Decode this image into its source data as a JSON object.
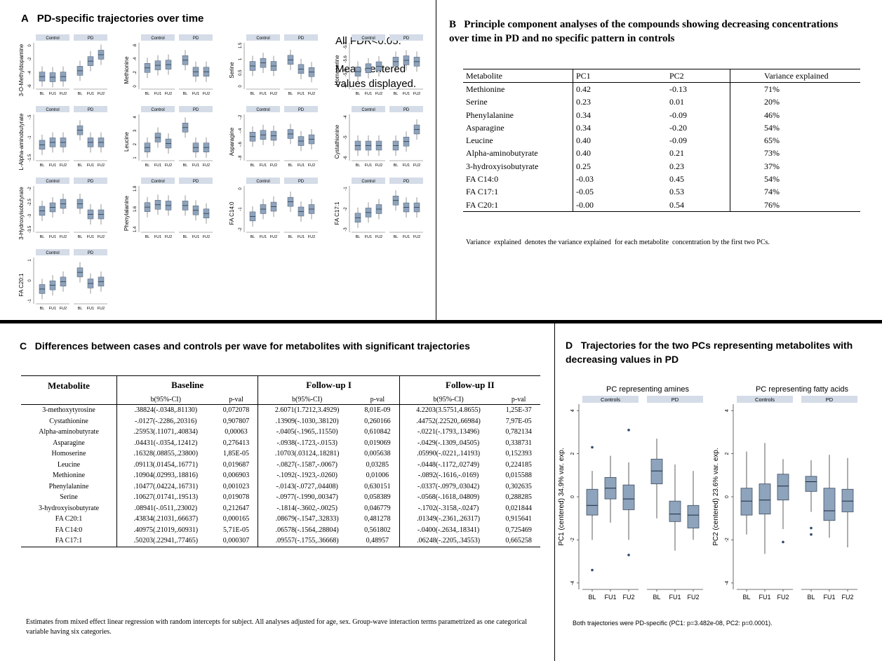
{
  "panelA": {
    "title": "A   PD-specific trajectories over time",
    "note1": "All FDR<0.05.",
    "note2": "Mean centered values displayed.",
    "strip_control": "Control",
    "strip_pd": "PD",
    "xticks": [
      "BL",
      "FU1",
      "FU2"
    ],
    "plots": [
      {
        "ylabel": "3-O-Methyldopamine",
        "yticks": [
          "0",
          "-2",
          "-4",
          "-6"
        ],
        "control": [
          -5.4,
          -5.5,
          -5.4
        ],
        "pd": [
          -4.5,
          -3.0,
          -2.0
        ]
      },
      {
        "ylabel": "Methionine",
        "yticks": [
          ".6",
          ".4",
          ".2",
          "0"
        ],
        "control": [
          0.28,
          0.32,
          0.33
        ],
        "pd": [
          0.4,
          0.22,
          0.22
        ]
      },
      {
        "ylabel": "Serine",
        "yticks": [
          "1.5",
          "1",
          "0.5",
          "0"
        ],
        "control": [
          1.0,
          1.05,
          1.0
        ],
        "pd": [
          1.1,
          0.95,
          0.9
        ]
      },
      {
        "ylabel": "Homoserine",
        "yticks": [
          "-5.4",
          "-5.6",
          "-5.8",
          "-6"
        ],
        "control": [
          -5.8,
          -5.75,
          -5.72
        ],
        "pd": [
          -5.65,
          -5.63,
          -5.65
        ]
      },
      {
        "ylabel": "L-Alpha-aminobutyrate",
        "yticks": [
          "-.5",
          "-1",
          "-1.5"
        ],
        "control": [
          -1.1,
          -1.05,
          -1.05
        ],
        "pd": [
          -0.8,
          -1.05,
          -1.05
        ]
      },
      {
        "ylabel": "Leucine",
        "yticks": [
          "4",
          "3",
          "2",
          "1"
        ],
        "control": [
          2.0,
          2.5,
          2.2
        ],
        "pd": [
          3.0,
          2.0,
          2.0
        ]
      },
      {
        "ylabel": "Asparagine",
        "yticks": [
          "-.2",
          "-.4",
          "-.6",
          "-.8"
        ],
        "control": [
          -0.45,
          -0.43,
          -0.44
        ],
        "pd": [
          -0.42,
          -0.5,
          -0.48
        ]
      },
      {
        "ylabel": "Cystathionine",
        "yticks": [
          "-4",
          "-5",
          "-6"
        ],
        "control": [
          -5.0,
          -5.0,
          -5.0
        ],
        "pd": [
          -5.0,
          -4.9,
          -4.6
        ]
      },
      {
        "ylabel": "3-Hydroxyisobutyrate",
        "yticks": [
          "-2",
          "-2.5",
          "-3",
          "-3.5"
        ],
        "control": [
          -2.7,
          -2.65,
          -2.6
        ],
        "pd": [
          -2.6,
          -2.75,
          -2.75
        ]
      },
      {
        "ylabel": "Phenylalanine",
        "yticks": [
          "1.8",
          "1.6",
          "1.4"
        ],
        "control": [
          1.6,
          1.63,
          1.62
        ],
        "pd": [
          1.62,
          1.56,
          1.52
        ]
      },
      {
        "ylabel": "FA C14:0",
        "yticks": [
          "0",
          "-1",
          "-2"
        ],
        "control": [
          -1.1,
          -0.95,
          -0.9
        ],
        "pd": [
          -0.8,
          -1.0,
          -0.95
        ]
      },
      {
        "ylabel": "FA C17:1",
        "yticks": [
          "-1",
          "-2",
          "-3"
        ],
        "control": [
          -1.8,
          -1.65,
          -1.55
        ],
        "pd": [
          -1.3,
          -1.5,
          -1.5
        ]
      },
      {
        "ylabel": "FA C20:1",
        "yticks": [
          "1",
          "0",
          "-1"
        ],
        "control": [
          -0.2,
          -0.1,
          0.0
        ],
        "pd": [
          0.25,
          -0.05,
          0.0
        ]
      }
    ]
  },
  "panelB": {
    "title": "B   Principle component analyses of the compounds showing decreasing concentrations over time in PD and no specific pattern in controls",
    "headers": [
      "Metabolite",
      "PC1",
      "PC2",
      "Variance explained"
    ],
    "rows": [
      [
        "Methionine",
        "0.42",
        "-0.13",
        "71%"
      ],
      [
        "Serine",
        "0.23",
        "0.01",
        "20%"
      ],
      [
        "Phenylalanine",
        "0.34",
        "-0.09",
        "46%"
      ],
      [
        "Asparagine",
        "0.34",
        "-0.20",
        "54%"
      ],
      [
        "Leucine",
        "0.40",
        "-0.09",
        "65%"
      ],
      [
        "Alpha-aminobutyrate",
        "0.40",
        "0.21",
        "73%"
      ],
      [
        "3-hydroxyisobutyrate",
        "0.25",
        "0.23",
        "37%"
      ],
      [
        "FA C14:0",
        "-0.03",
        "0.45",
        "54%"
      ],
      [
        "FA C17:1",
        "-0.05",
        "0.53",
        "74%"
      ],
      [
        "FA C20:1",
        "-0.00",
        "0.54",
        "76%"
      ]
    ],
    "footnote": "Variance  explained  denotes the variance explained  for each metabolite  concentration by the first two PCs."
  },
  "panelC": {
    "title": "C   Differences between cases and controls per wave for metabolites with significant trajectories",
    "col_metabolite": "Metabolite",
    "groups": [
      "Baseline",
      "Follow-up  I",
      "Follow-up  II"
    ],
    "sub_b": "b(95%-CI)",
    "sub_p": "p-val",
    "rows": [
      [
        "3-methoxytyrosine",
        ".38824(-.0348,.81130)",
        "0,072078",
        "2.6071(1.7212,3.4929)",
        "8,01E-09",
        "4.2203(3.5751,4.8655)",
        "1,25E-37"
      ],
      [
        "Cystathionine",
        "-.0127(-.2286,.20316)",
        "0,907807",
        ".13909(-.1030,.38120)",
        "0,260166",
        ".44752(.22520,.66984)",
        "7,97E-05"
      ],
      [
        "Alpha-aminobutyrate",
        ".25953(.11071,.40834)",
        "0,00063",
        "-.0405(-.1965,.11550)",
        "0,610842",
        "-.0221(-.1793,.13496)",
        "0,782134"
      ],
      [
        "Asparagine",
        ".04431(-.0354,.12412)",
        "0,276413",
        "-.0938(-.1723,-.0153)",
        "0,019069",
        "-.0429(-.1309,.04505)",
        "0,338731"
      ],
      [
        "Homoserine",
        ".16328(.08855,.23800)",
        "1,85E-05",
        ".10703(.03124,.18281)",
        "0,005638",
        ".05990(-.0221,.14193)",
        "0,152393"
      ],
      [
        "Leucine",
        ".09113(.01454,.16771)",
        "0,019687",
        "-.0827(-.1587,-.0067)",
        "0,03285",
        "-.0448(-.1172,.02749)",
        "0,224185"
      ],
      [
        "Methionine",
        ".10904(.02993,.18816)",
        "0,006903",
        "-.1092(-.1923,-.0260)",
        "0,01006",
        "-.0892(-.1616,-.0169)",
        "0,015588"
      ],
      [
        "Phenylalanine",
        ".10477(.04224,.16731)",
        "0,001023",
        "-.0143(-.0727,.04408)",
        "0,630151",
        "-.0337(-.0979,.03042)",
        "0,302635"
      ],
      [
        "Serine",
        ".10627(.01741,.19513)",
        "0,019078",
        "-.0977(-.1990,.00347)",
        "0,058389",
        "-.0568(-.1618,.04809)",
        "0,288285"
      ],
      [
        "3-hydroxyisobutyrate",
        ".08941(-.0511,.23002)",
        "0,212647",
        "-.1814(-.3602,-.0025)",
        "0,046779",
        "-.1702(-.3158,-.0247)",
        "0,021844"
      ],
      [
        "FA C20:1",
        ".43834(.21031,.66637)",
        "0,000165",
        ".08679(-.1547,.32833)",
        "0,481278",
        ".01349(-.2361,.26317)",
        "0,915641"
      ],
      [
        "FA C14:0",
        ".40975(.21019,.60931)",
        "5,71E-05",
        ".06578(-.1564,.28804)",
        "0,561802",
        "-.0400(-.2634,.18341)",
        "0,725469"
      ],
      [
        "FA C17:1",
        ".50203(.22941,.77465)",
        "0,000307",
        ".09557(-.1755,.36668)",
        "0,48957",
        ".06248(-.2205,.34553)",
        "0,665258"
      ]
    ],
    "footnote": "Estimates from mixed  effect linear regression with random intercepts for subject. All analyses adjusted for age, sex. Group-wave interaction terms parametrized  as one categorical variable having six categories."
  },
  "panelD": {
    "title": "D   Trajectories for the two PCs representing metabolites with decreasing values in PD",
    "footnote": "Both trajectories were PD-specific (PC1: p=3.482e-08, PC2: p=0.0001).",
    "chart_data": [
      {
        "type": "boxplot",
        "title": "PC representing amines",
        "ylabel": "PC1 (centered) 34.9% var. exp.",
        "ylim": [
          -4.3,
          4.3
        ],
        "yticks": [
          4,
          2,
          0,
          -2,
          -4
        ],
        "panels": [
          "Controls",
          "PD"
        ],
        "categories": [
          "BL",
          "FU1",
          "FU2"
        ],
        "series": [
          {
            "name": "Controls",
            "boxes": [
              {
                "q1": -0.85,
                "median": -0.4,
                "q3": 0.35,
                "low": -2.0,
                "high": 1.2,
                "outliers": [
                  2.3,
                  -3.4
                ]
              },
              {
                "q1": -0.1,
                "median": 0.4,
                "q3": 0.9,
                "low": -1.2,
                "high": 1.9,
                "outliers": []
              },
              {
                "q1": -0.6,
                "median": -0.1,
                "q3": 0.55,
                "low": -2.0,
                "high": 1.6,
                "outliers": [
                  3.1,
                  -2.7
                ]
              }
            ]
          },
          {
            "name": "PD",
            "boxes": [
              {
                "q1": 0.6,
                "median": 1.2,
                "q3": 1.75,
                "low": -1.0,
                "high": 2.7,
                "outliers": []
              },
              {
                "q1": -1.15,
                "median": -0.8,
                "q3": -0.2,
                "low": -2.5,
                "high": 1.5,
                "outliers": []
              },
              {
                "q1": -1.45,
                "median": -0.85,
                "q3": -0.4,
                "low": -2.0,
                "high": 1.2,
                "outliers": []
              }
            ]
          }
        ]
      },
      {
        "type": "boxplot",
        "title": "PC representing fatty acids",
        "ylabel": "PC2 (centered) 23.6% var. exp.",
        "ylim": [
          -4.3,
          4.3
        ],
        "yticks": [
          4,
          2,
          0,
          -2,
          -4
        ],
        "panels": [
          "Controls",
          "PD"
        ],
        "categories": [
          "BL",
          "FU1",
          "FU2"
        ],
        "series": [
          {
            "name": "Controls",
            "boxes": [
              {
                "q1": -0.85,
                "median": -0.2,
                "q3": 0.4,
                "low": -1.75,
                "high": 2.1,
                "outliers": []
              },
              {
                "q1": -0.8,
                "median": -0.15,
                "q3": 0.6,
                "low": -2.65,
                "high": 2.5,
                "outliers": []
              },
              {
                "q1": -0.15,
                "median": 0.5,
                "q3": 1.05,
                "low": -1.5,
                "high": 1.75,
                "outliers": [
                  -2.1
                ]
              }
            ]
          },
          {
            "name": "PD",
            "boxes": [
              {
                "q1": 0.25,
                "median": 0.7,
                "q3": 0.95,
                "low": -0.7,
                "high": 1.7,
                "outliers": [
                  -1.45,
                  -1.75
                ]
              },
              {
                "q1": -1.1,
                "median": -0.65,
                "q3": 0.4,
                "low": -1.9,
                "high": 1.95,
                "outliers": []
              },
              {
                "q1": -0.7,
                "median": -0.2,
                "q3": 0.35,
                "low": -2.35,
                "high": 1.8,
                "outliers": []
              }
            ]
          }
        ]
      }
    ]
  }
}
